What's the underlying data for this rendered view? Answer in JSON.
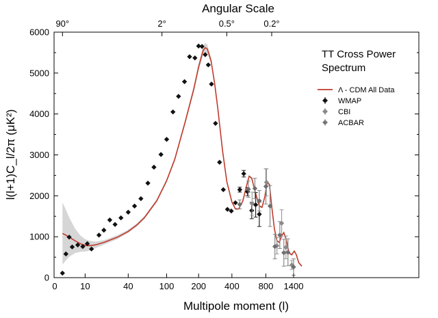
{
  "chart_data": {
    "type": "scatter",
    "top_title": "Angular Scale",
    "xlabel": "Multipole moment (l)",
    "ylabel": "l(l+1)C_l/2π (μK²)",
    "ylim": [
      0,
      6000
    ],
    "y_ticks": [
      "0",
      "1000",
      "2000",
      "3000",
      "4000",
      "5000",
      "6000"
    ],
    "bottom_ticks": [
      {
        "l": 10,
        "label": "10"
      },
      {
        "l": 40,
        "label": "40"
      },
      {
        "l": 100,
        "label": "100"
      },
      {
        "l": 200,
        "label": "200"
      },
      {
        "l": 400,
        "label": "400"
      },
      {
        "l": 800,
        "label": "800"
      },
      {
        "l": 1400,
        "label": "1400"
      }
    ],
    "zero_label": "0",
    "top_ticks": [
      {
        "l": 2,
        "label": "90°"
      },
      {
        "l": 90,
        "label": "2°"
      },
      {
        "l": 360,
        "label": "0.5°"
      },
      {
        "l": 900,
        "label": "0.2°"
      }
    ],
    "legend_title_lines": [
      "TT Cross Power",
      "Spectrum"
    ],
    "legend": {
      "model": "Λ - CDM All Data",
      "wmap": "WMAP",
      "cbi": "CBI",
      "acbar": "ACBAR"
    },
    "model_curve": [
      [
        2,
        1080
      ],
      [
        3,
        1040
      ],
      [
        4,
        990
      ],
      [
        6,
        900
      ],
      [
        8,
        830
      ],
      [
        10,
        790
      ],
      [
        12,
        780
      ],
      [
        15,
        800
      ],
      [
        20,
        860
      ],
      [
        30,
        990
      ],
      [
        40,
        1130
      ],
      [
        50,
        1290
      ],
      [
        60,
        1470
      ],
      [
        80,
        1880
      ],
      [
        100,
        2370
      ],
      [
        120,
        2900
      ],
      [
        150,
        3800
      ],
      [
        180,
        4600
      ],
      [
        200,
        5150
      ],
      [
        220,
        5550
      ],
      [
        230,
        5620
      ],
      [
        240,
        5590
      ],
      [
        260,
        5300
      ],
      [
        280,
        4750
      ],
      [
        300,
        4100
      ],
      [
        330,
        3100
      ],
      [
        360,
        2350
      ],
      [
        400,
        1850
      ],
      [
        430,
        1680
      ],
      [
        460,
        1680
      ],
      [
        500,
        1870
      ],
      [
        540,
        2250
      ],
      [
        570,
        2480
      ],
      [
        600,
        2430
      ],
      [
        650,
        2050
      ],
      [
        700,
        1750
      ],
      [
        740,
        1720
      ],
      [
        780,
        1960
      ],
      [
        820,
        2320
      ],
      [
        860,
        2280
      ],
      [
        900,
        1750
      ],
      [
        950,
        1200
      ],
      [
        1000,
        900
      ],
      [
        1050,
        860
      ],
      [
        1100,
        1020
      ],
      [
        1150,
        1100
      ],
      [
        1200,
        950
      ],
      [
        1280,
        600
      ],
      [
        1350,
        560
      ],
      [
        1420,
        650
      ],
      [
        1480,
        560
      ],
      [
        1550,
        370
      ],
      [
        1650,
        280
      ]
    ],
    "band_halfwidth": [
      [
        2,
        760
      ],
      [
        3,
        620
      ],
      [
        4,
        480
      ],
      [
        6,
        300
      ],
      [
        8,
        200
      ],
      [
        10,
        150
      ],
      [
        15,
        80
      ],
      [
        20,
        55
      ],
      [
        40,
        40
      ],
      [
        100,
        40
      ],
      [
        150,
        55
      ],
      [
        200,
        90
      ],
      [
        230,
        120
      ],
      [
        260,
        70
      ],
      [
        300,
        30
      ],
      [
        500,
        25
      ],
      [
        1000,
        25
      ],
      [
        1650,
        25
      ]
    ],
    "series": [
      {
        "name": "WMAP",
        "points": [
          [
            2,
            110,
            0
          ],
          [
            3,
            580,
            0
          ],
          [
            4,
            990,
            0
          ],
          [
            5,
            750,
            0
          ],
          [
            7,
            800,
            0
          ],
          [
            9,
            760,
            0
          ],
          [
            11,
            830,
            0
          ],
          [
            13,
            700,
            0
          ],
          [
            17,
            1040,
            0
          ],
          [
            20,
            1160,
            0
          ],
          [
            24,
            1410,
            0
          ],
          [
            28,
            1300,
            0
          ],
          [
            33,
            1460,
            0
          ],
          [
            40,
            1600,
            0
          ],
          [
            47,
            1750,
            0
          ],
          [
            55,
            1930,
            0
          ],
          [
            65,
            2310,
            0
          ],
          [
            75,
            2700,
            0
          ],
          [
            88,
            3010,
            0
          ],
          [
            100,
            3380,
            0
          ],
          [
            115,
            4050,
            0
          ],
          [
            130,
            4430,
            0
          ],
          [
            148,
            4790,
            0
          ],
          [
            165,
            5400,
            0
          ],
          [
            185,
            5370,
            0
          ],
          [
            200,
            5660,
            0
          ],
          [
            215,
            5650,
            0
          ],
          [
            230,
            5450,
            0
          ],
          [
            245,
            5200,
            0
          ],
          [
            262,
            4730,
            0
          ],
          [
            285,
            3770,
            0
          ],
          [
            310,
            2820,
            0
          ],
          [
            335,
            2150,
            0
          ],
          [
            365,
            1670,
            0
          ],
          [
            395,
            1630,
            0
          ],
          [
            430,
            1830,
            0
          ],
          [
            470,
            2150,
            60
          ],
          [
            510,
            2540,
            80
          ],
          [
            550,
            2100,
            100
          ],
          [
            600,
            1640,
            200
          ],
          [
            650,
            1780,
            300
          ],
          [
            700,
            1550,
            300
          ]
        ]
      },
      {
        "name": "CBI",
        "points": [
          [
            605,
            1810,
            280
          ],
          [
            810,
            2330,
            330
          ],
          [
            1000,
            780,
            200
          ],
          [
            1100,
            1330,
            330
          ],
          [
            1200,
            740,
            280
          ],
          [
            1350,
            310,
            110
          ]
        ]
      },
      {
        "name": "ACBAR",
        "points": [
          [
            470,
            1790,
            110
          ],
          [
            560,
            2160,
            200
          ],
          [
            640,
            2180,
            250
          ],
          [
            700,
            1880,
            250
          ],
          [
            800,
            2230,
            430
          ],
          [
            870,
            1750,
            500
          ],
          [
            960,
            760,
            300
          ],
          [
            1060,
            1040,
            330
          ],
          [
            1150,
            610,
            330
          ],
          [
            1250,
            620,
            330
          ],
          [
            1400,
            260,
            200
          ]
        ]
      }
    ]
  }
}
